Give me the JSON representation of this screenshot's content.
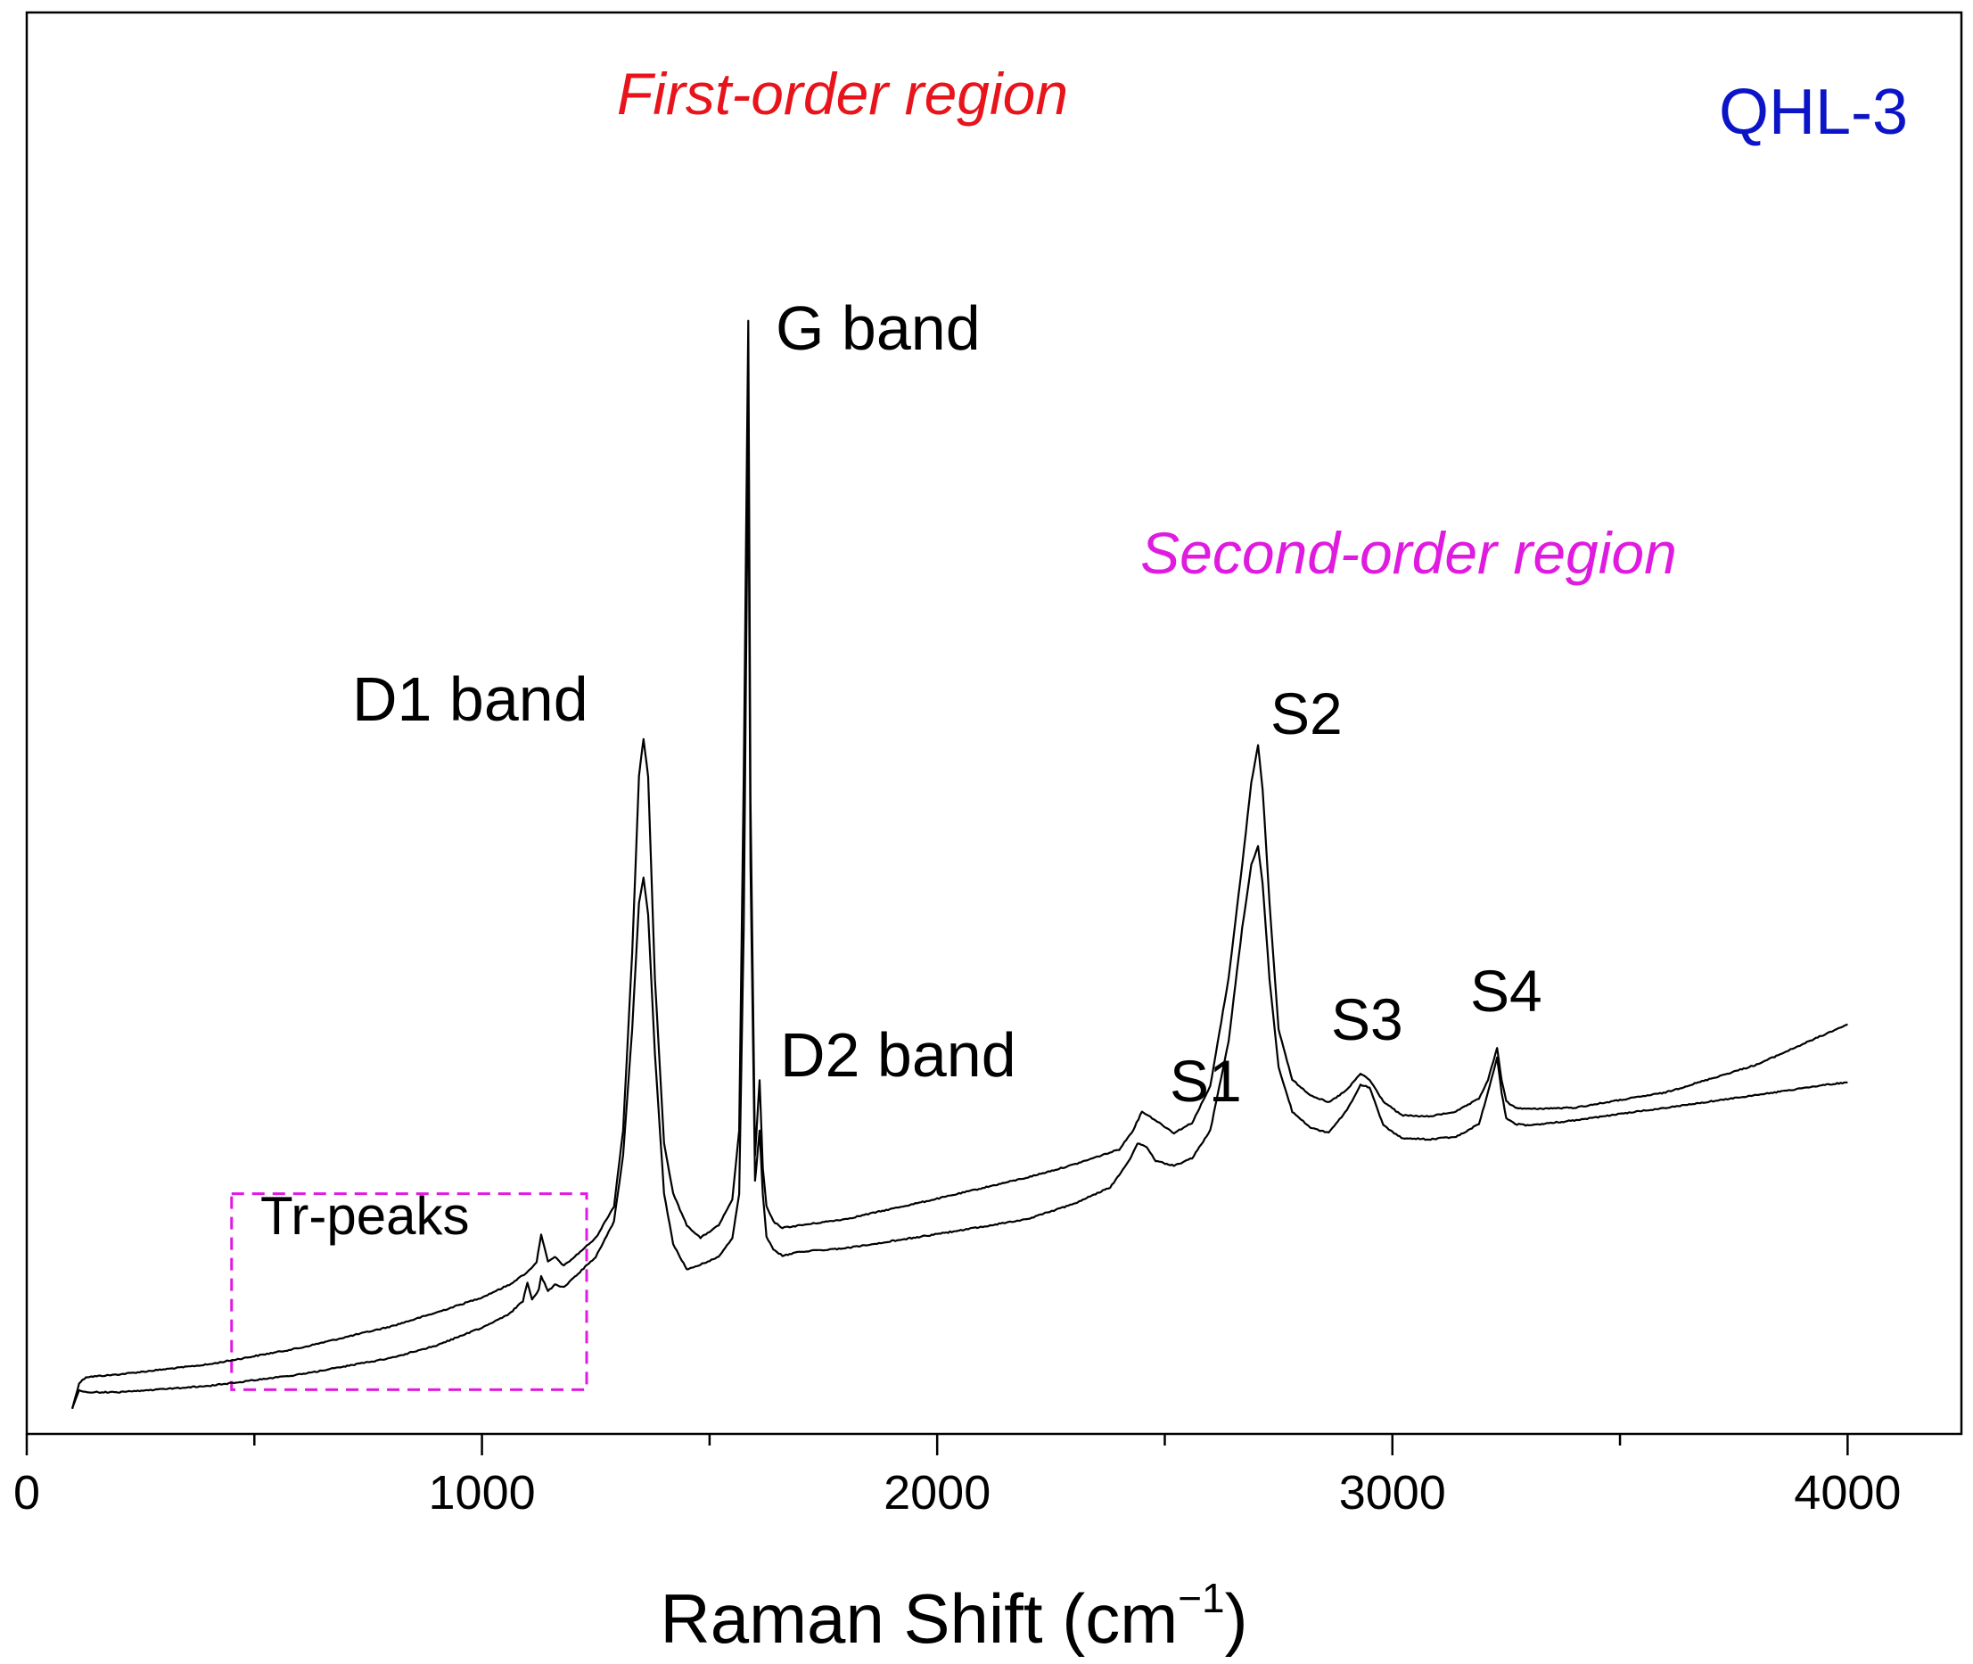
{
  "colors": {
    "axis": "#000000",
    "spectrum": "#000000",
    "first_order_label": "#e8141b",
    "second_order_label": "#e01be0",
    "sample_label": "#0c14c8",
    "tr_box": "#e01be0"
  },
  "chart_data": {
    "type": "line",
    "title": "QHL-3",
    "xlabel_main": "Raman Shift (cm",
    "xlabel_sup": "−1",
    "xlabel_close": ")",
    "ylabel": "",
    "xlim": [
      0,
      4250
    ],
    "ylim": [
      0,
      100
    ],
    "x_ticks": [
      0,
      1000,
      2000,
      3000,
      4000
    ],
    "x_tick_labels": [
      "0",
      "1000",
      "2000",
      "3000",
      "4000"
    ],
    "x_minor_ticks": [
      500,
      1500,
      2500,
      3500
    ],
    "grid": false,
    "y_axis_ticks_shown": false,
    "series": [
      {
        "name": "spectrum-upper",
        "x": [
          100,
          115,
          130,
          200,
          400,
          600,
          800,
          900,
          1000,
          1060,
          1100,
          1120,
          1130,
          1145,
          1160,
          1180,
          1200,
          1250,
          1290,
          1310,
          1330,
          1345,
          1355,
          1365,
          1380,
          1400,
          1420,
          1450,
          1480,
          1520,
          1550,
          1565,
          1575,
          1580,
          1585,
          1590,
          1600,
          1610,
          1617,
          1625,
          1640,
          1660,
          1700,
          1800,
          2000,
          2200,
          2300,
          2400,
          2430,
          2450,
          2480,
          2520,
          2560,
          2600,
          2640,
          2670,
          2690,
          2705,
          2715,
          2730,
          2750,
          2780,
          2820,
          2860,
          2900,
          2930,
          2950,
          2980,
          3020,
          3080,
          3140,
          3190,
          3210,
          3230,
          3240,
          3250,
          3270,
          3300,
          3400,
          3600,
          3800,
          3950,
          4000
        ],
        "y": [
          2,
          4,
          4.5,
          4.7,
          5.5,
          6.8,
          8.5,
          9.6,
          10.8,
          11.8,
          12.8,
          13.6,
          15.8,
          13.6,
          14,
          13.3,
          13.9,
          15.5,
          18,
          24,
          38,
          52,
          55,
          52,
          36,
          23,
          19,
          16.5,
          15.5,
          16.5,
          18.5,
          24,
          52,
          70,
          88,
          50,
          22,
          28,
          21,
          18,
          16.8,
          16.3,
          16.5,
          17,
          18.6,
          20.3,
          21.3,
          22.5,
          24,
          25.5,
          24.8,
          23.8,
          24.6,
          27.5,
          36,
          45,
          51.5,
          54.5,
          51,
          42,
          32,
          28,
          26.8,
          26.2,
          27.2,
          28.5,
          28,
          26.3,
          25.2,
          25.1,
          25.5,
          26.5,
          28,
          30.5,
          28,
          26.3,
          25.8,
          25.7,
          25.8,
          27,
          29.2,
          31.6,
          32.4
        ]
      },
      {
        "name": "spectrum-lower",
        "x": [
          100,
          115,
          130,
          200,
          400,
          600,
          800,
          900,
          1000,
          1060,
          1090,
          1100,
          1110,
          1125,
          1130,
          1145,
          1160,
          1180,
          1200,
          1250,
          1290,
          1310,
          1330,
          1345,
          1355,
          1365,
          1380,
          1400,
          1420,
          1450,
          1480,
          1520,
          1550,
          1565,
          1575,
          1580,
          1585,
          1590,
          1600,
          1610,
          1617,
          1625,
          1640,
          1660,
          1700,
          1800,
          2000,
          2200,
          2300,
          2380,
          2420,
          2440,
          2460,
          2480,
          2520,
          2560,
          2600,
          2640,
          2670,
          2690,
          2705,
          2715,
          2730,
          2750,
          2780,
          2820,
          2860,
          2900,
          2930,
          2950,
          2980,
          3020,
          3080,
          3140,
          3190,
          3210,
          3230,
          3240,
          3250,
          3270,
          3300,
          3400,
          3600,
          3800,
          3950,
          4000
        ],
        "y": [
          2,
          3.5,
          3.3,
          3.3,
          3.8,
          4.7,
          6,
          7,
          8.4,
          9.5,
          10.5,
          12,
          10.6,
          11.4,
          12.5,
          11.3,
          11.8,
          11.6,
          12.3,
          14,
          16.8,
          22,
          32,
          42,
          44,
          41,
          30,
          19,
          15,
          13,
          13.4,
          14,
          15.5,
          19,
          40,
          60,
          79,
          45,
          20,
          24,
          19,
          15.6,
          14.6,
          14.1,
          14.4,
          14.7,
          15.8,
          17,
          18.2,
          19.5,
          21.5,
          23,
          22.7,
          21.6,
          21.2,
          21.8,
          24,
          31,
          40,
          45,
          46.5,
          43.5,
          36,
          29,
          25.5,
          24.2,
          23.8,
          25.6,
          27.6,
          27.4,
          24.4,
          23.4,
          23.3,
          23.5,
          24.5,
          27,
          29.8,
          27,
          25,
          24.5,
          24.4,
          24.8,
          25.8,
          26.8,
          27.6,
          27.8
        ]
      }
    ],
    "annotations": {
      "first_order": "First-order region",
      "second_order": "Second-order region",
      "sample": "QHL-3",
      "g_band": "G band",
      "d1_band": "D1 band",
      "d2_band": "D2 band",
      "s1": "S1",
      "s2": "S2",
      "s3": "S3",
      "s4": "S4",
      "tr_peaks": "Tr-peaks"
    },
    "tr_region": {
      "x_start": 450,
      "x_end": 1230,
      "y_low": 3.5,
      "y_high": 19
    }
  }
}
